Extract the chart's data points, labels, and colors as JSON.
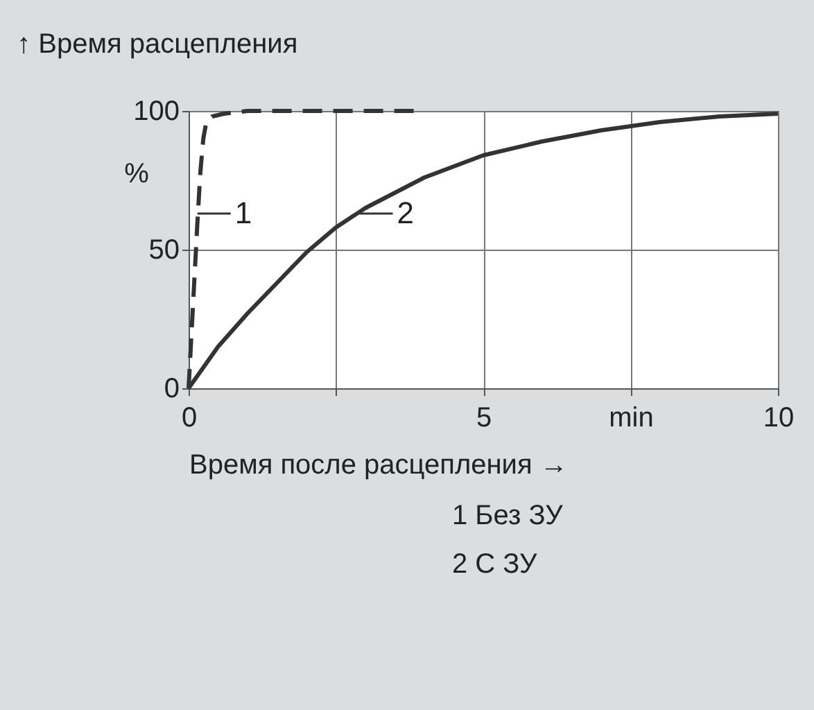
{
  "chart_data": {
    "type": "line",
    "title": "↑ Время расцепления",
    "xlabel": "Время после расцепления →",
    "ylabel": "%",
    "xlim": [
      0,
      10
    ],
    "ylim": [
      0,
      100
    ],
    "xticks": [
      0,
      {
        "value": 2.5,
        "label": null
      },
      5,
      {
        "value": 7.5,
        "label": "min"
      },
      10
    ],
    "yticks": [
      0,
      50,
      100
    ],
    "grid": true,
    "legend": false,
    "series": [
      {
        "color": "#333333",
        "line_style": "dashed",
        "x": [
          0,
          0.05,
          0.1,
          0.15,
          0.2,
          0.25,
          0.3,
          0.4,
          0.6,
          1,
          2,
          3.85
        ],
        "values": [
          0,
          20,
          40,
          60,
          78,
          90,
          96,
          98,
          99,
          100,
          100,
          100
        ]
      },
      {
        "color": "#333333",
        "line_style": "solid",
        "x": [
          0,
          0.5,
          1,
          1.5,
          2,
          2.5,
          3,
          4,
          5,
          6,
          7,
          8,
          9,
          10
        ],
        "values": [
          0,
          15,
          27,
          38,
          49,
          58,
          65,
          76,
          84,
          89,
          93,
          96,
          98,
          99
        ]
      }
    ],
    "annotations": [
      {
        "text": "1",
        "x": 0.15,
        "y": 63
      },
      {
        "text": "2",
        "x": 2.9,
        "y": 63
      },
      "1  Без ЗУ",
      "2  С ЗУ"
    ]
  }
}
